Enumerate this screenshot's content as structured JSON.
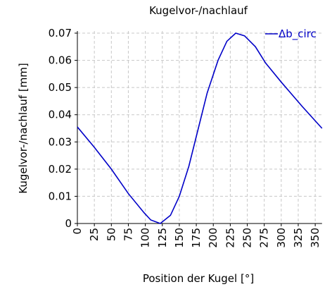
{
  "chart_data": {
    "type": "line",
    "title": "Kugelvor-/nachlauf",
    "x_label": "Position der Kugel [°]",
    "y_label": "Kugelvor-/nachlauf [mm]",
    "x": [
      0,
      25,
      50,
      75,
      98,
      108,
      122,
      137,
      150,
      164,
      178,
      191,
      207,
      220,
      233,
      246,
      262,
      277,
      300,
      331,
      360
    ],
    "series": [
      {
        "name": "Δb_circ",
        "color": "#0000c8",
        "values": [
          0.0355,
          0.028,
          0.02,
          0.011,
          0.004,
          0.0013,
          0,
          0.003,
          0.01,
          0.021,
          0.035,
          0.048,
          0.06,
          0.067,
          0.07,
          0.069,
          0.065,
          0.059,
          0.052,
          0.043,
          0.035
        ]
      }
    ],
    "xlim": [
      0,
      360
    ],
    "xticks": [
      0,
      25,
      50,
      75,
      100,
      125,
      150,
      175,
      200,
      225,
      250,
      275,
      300,
      325,
      350
    ],
    "ylim": [
      0,
      0.07
    ],
    "yticks": [
      0,
      0.01,
      0.02,
      0.03,
      0.04,
      0.05,
      0.06,
      0.07
    ],
    "grid": true,
    "legend": "upper right"
  }
}
